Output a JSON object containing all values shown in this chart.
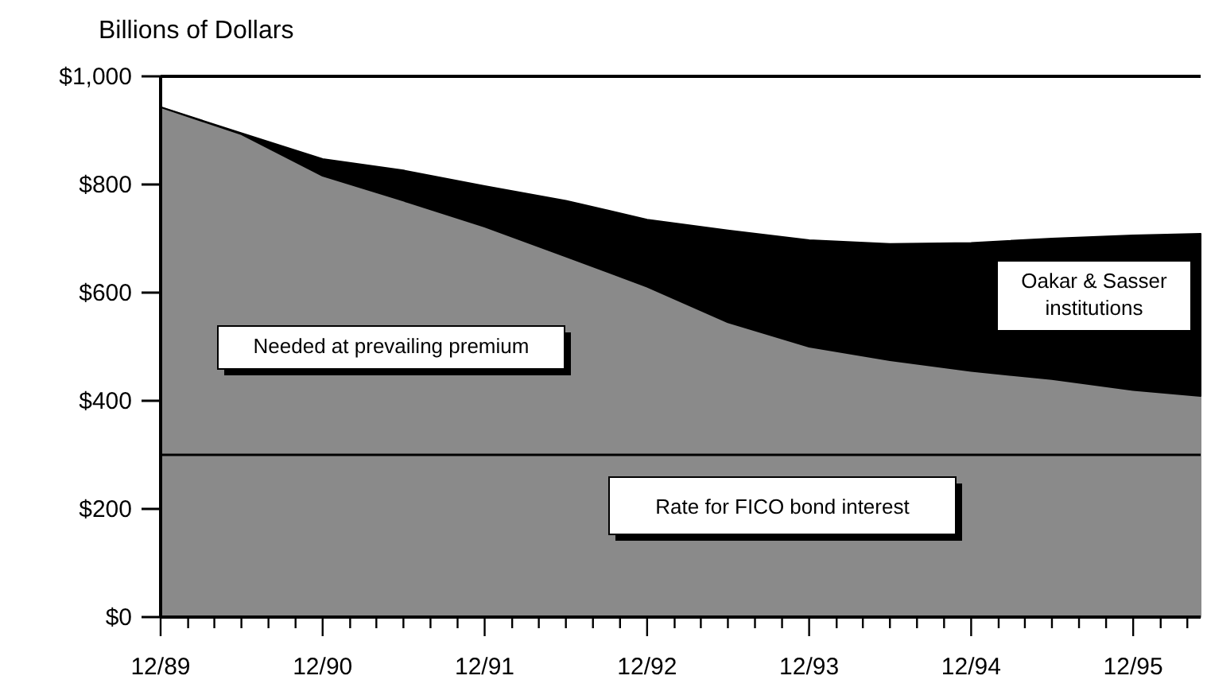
{
  "chart_data": {
    "type": "area",
    "stacked": true,
    "ylabel": "Billions of Dollars",
    "x": [
      "1989-12",
      "1990-06",
      "1990-12",
      "1991-06",
      "1991-12",
      "1992-06",
      "1992-12",
      "1993-06",
      "1993-12",
      "1994-06",
      "1994-12",
      "1995-06",
      "1995-12",
      "1996-05"
    ],
    "xlim": [
      "1989-12",
      "1996-05"
    ],
    "xticks": [
      {
        "value": "1989-12",
        "label": "12/89"
      },
      {
        "value": "1990-02",
        "label": null
      },
      {
        "value": "1990-04",
        "label": null
      },
      {
        "value": "1990-06",
        "label": null
      },
      {
        "value": "1990-08",
        "label": null
      },
      {
        "value": "1990-10",
        "label": null
      },
      {
        "value": "1990-12",
        "label": "12/90"
      },
      {
        "value": "1991-02",
        "label": null
      },
      {
        "value": "1991-04",
        "label": null
      },
      {
        "value": "1991-06",
        "label": null
      },
      {
        "value": "1991-08",
        "label": null
      },
      {
        "value": "1991-10",
        "label": null
      },
      {
        "value": "1991-12",
        "label": "12/91"
      },
      {
        "value": "1992-02",
        "label": null
      },
      {
        "value": "1992-04",
        "label": null
      },
      {
        "value": "1992-06",
        "label": null
      },
      {
        "value": "1992-08",
        "label": null
      },
      {
        "value": "1992-10",
        "label": null
      },
      {
        "value": "1992-12",
        "label": "12/92"
      },
      {
        "value": "1993-02",
        "label": null
      },
      {
        "value": "1993-04",
        "label": null
      },
      {
        "value": "1993-06",
        "label": null
      },
      {
        "value": "1993-08",
        "label": null
      },
      {
        "value": "1993-10",
        "label": null
      },
      {
        "value": "1993-12",
        "label": "12/93"
      },
      {
        "value": "1994-02",
        "label": null
      },
      {
        "value": "1994-04",
        "label": null
      },
      {
        "value": "1994-06",
        "label": null
      },
      {
        "value": "1994-08",
        "label": null
      },
      {
        "value": "1994-10",
        "label": null
      },
      {
        "value": "1994-12",
        "label": "12/94"
      },
      {
        "value": "1995-02",
        "label": null
      },
      {
        "value": "1995-04",
        "label": null
      },
      {
        "value": "1995-06",
        "label": null
      },
      {
        "value": "1995-08",
        "label": null
      },
      {
        "value": "1995-10",
        "label": null
      },
      {
        "value": "1995-12",
        "label": "12/95"
      },
      {
        "value": "1996-02",
        "label": null
      },
      {
        "value": "1996-04",
        "label": null
      }
    ],
    "ylim": [
      0,
      1000
    ],
    "yticks": [
      {
        "value": 0,
        "label": "$0"
      },
      {
        "value": 200,
        "label": "$200"
      },
      {
        "value": 400,
        "label": "$400"
      },
      {
        "value": 600,
        "label": "$600"
      },
      {
        "value": 800,
        "label": "$800"
      },
      {
        "value": 1000,
        "label": "$1,000"
      }
    ],
    "series": [
      {
        "name": "Needed at prevailing premium",
        "color": "#8a8a8a",
        "values": [
          943,
          893,
          816,
          770,
          722,
          667,
          611,
          545,
          500,
          475,
          455,
          440,
          420,
          409
        ]
      },
      {
        "name": "Oakar & Sasser institutions",
        "color": "#000000",
        "values": [
          0,
          2,
          31,
          56,
          75,
          103,
          124,
          170,
          197,
          215,
          237,
          260,
          286,
          300
        ]
      }
    ],
    "ref_lines": [
      {
        "axis": "y",
        "value": 300,
        "label": "Rate for FICO bond interest",
        "color": "#000000"
      }
    ],
    "grid": false
  }
}
